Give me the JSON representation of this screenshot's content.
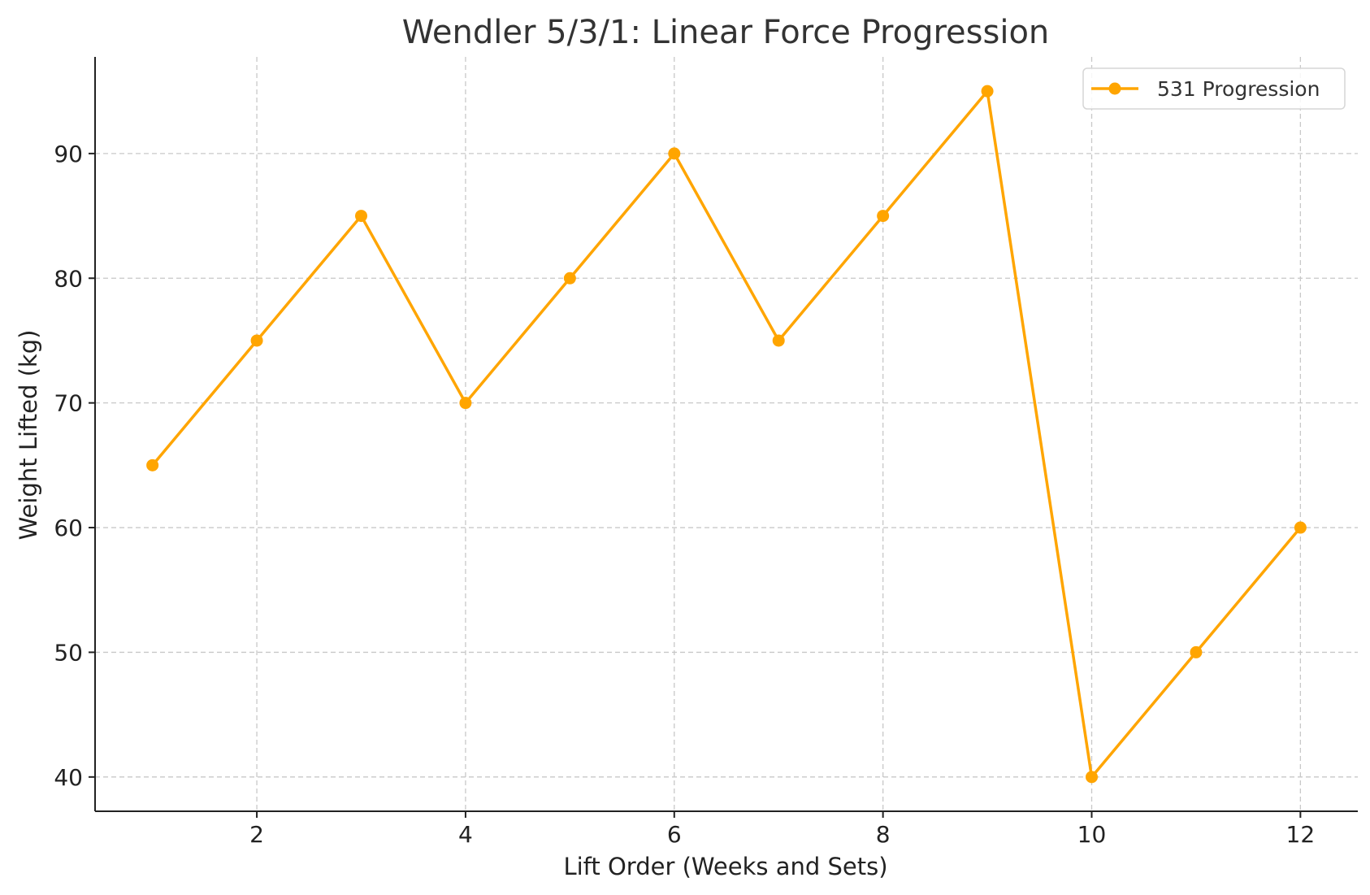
{
  "chart_data": {
    "type": "line",
    "title": "Wendler 5/3/1: Linear Force Progression",
    "xlabel": "Lift Order (Weeks and Sets)",
    "ylabel": "Weight Lifted (kg)",
    "xlim": [
      0.45,
      12.55
    ],
    "ylim": [
      37.25,
      97.75
    ],
    "xticks": [
      2,
      4,
      6,
      8,
      10,
      12
    ],
    "yticks": [
      40,
      50,
      60,
      70,
      80,
      90
    ],
    "grid": true,
    "legend_position": "top-right",
    "series": [
      {
        "name": "531 Progression",
        "color": "#FFA500",
        "marker": "circle",
        "x": [
          1,
          2,
          3,
          4,
          5,
          6,
          7,
          8,
          9,
          10,
          11,
          12
        ],
        "y": [
          65,
          75,
          85,
          70,
          80,
          90,
          75,
          85,
          95,
          40,
          50,
          60
        ]
      }
    ]
  }
}
